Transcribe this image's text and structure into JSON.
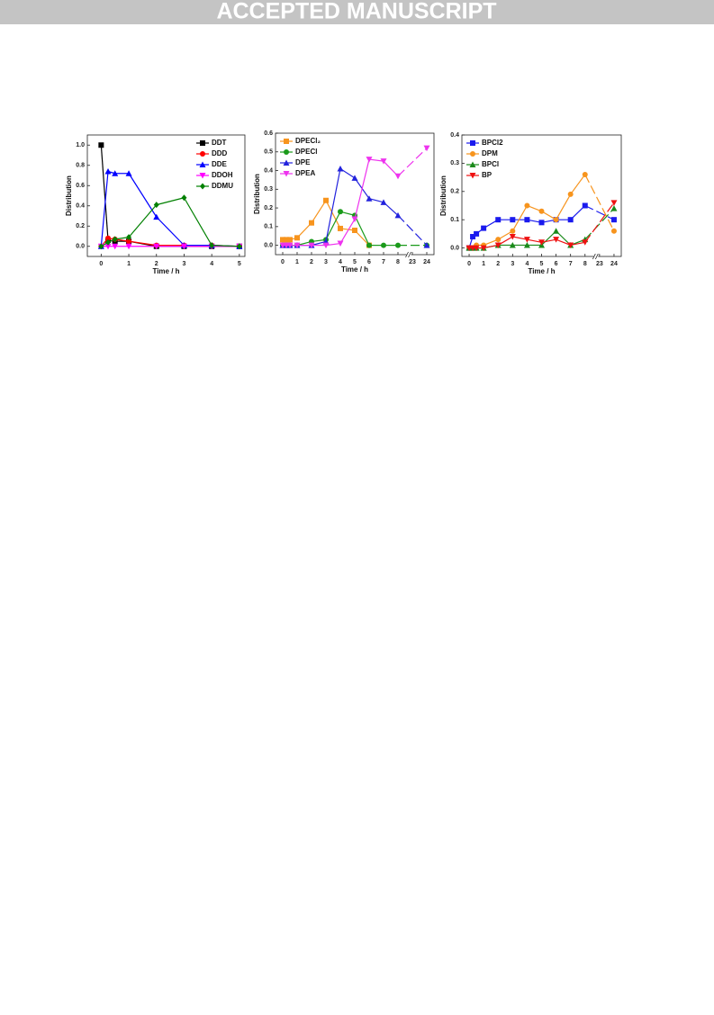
{
  "header": {
    "title": "ACCEPTED MANUSCRIPT"
  },
  "chart_data": [
    {
      "type": "line",
      "xlabel": "Time / h",
      "ylabel": "Distribution",
      "legend": "upper right",
      "x": [
        0,
        0.25,
        0.5,
        1,
        2,
        3,
        4,
        5
      ],
      "xlim": [
        -0.5,
        5.2
      ],
      "xticks": [
        0,
        1,
        2,
        3,
        4,
        5
      ],
      "ylim": [
        -0.1,
        1.1
      ],
      "yticks": [
        {
          "value": 0,
          "label": "0.0"
        },
        0.2,
        0.4,
        0.6,
        0.8,
        {
          "value": 1,
          "label": "1.0"
        }
      ],
      "series": [
        {
          "name": "DDT",
          "color": "#000000",
          "marker": "square",
          "values": [
            1.0,
            0.06,
            0.05,
            0.05,
            0,
            0,
            0,
            0
          ]
        },
        {
          "name": "DDD",
          "color": "#ff0000",
          "marker": "circle",
          "values": [
            0,
            0.08,
            0.07,
            0.05,
            0.01,
            0.01,
            0.01,
            0
          ]
        },
        {
          "name": "DDE",
          "color": "#0000ff",
          "marker": "triangle-up",
          "values": [
            0,
            0.74,
            0.72,
            0.72,
            0.29,
            0.01,
            0.01,
            0
          ]
        },
        {
          "name": "DDOH",
          "color": "#ff00ff",
          "marker": "triangle-down",
          "values": [
            0,
            0,
            0,
            0,
            0,
            0,
            0,
            0
          ]
        },
        {
          "name": "DDMU",
          "color": "#008000",
          "marker": "diamond",
          "values": [
            0,
            0.04,
            0.07,
            0.09,
            0.41,
            0.48,
            0.01,
            0
          ]
        }
      ]
    },
    {
      "type": "line",
      "xlabel": "Time / h",
      "ylabel": "Distribution",
      "legend": "upper left",
      "axis_break": true,
      "x": [
        0,
        0.25,
        0.5,
        1,
        2,
        3,
        4,
        5,
        6,
        7,
        8,
        24
      ],
      "xlim": [
        -0.5,
        24.5
      ],
      "xticks": [
        0,
        1,
        2,
        3,
        4,
        5,
        6,
        7,
        8,
        23,
        24
      ],
      "ylim": [
        -0.05,
        0.6
      ],
      "yticks": [
        {
          "value": 0,
          "label": "0.0"
        },
        0.1,
        0.2,
        0.3,
        0.4,
        0.5,
        0.6
      ],
      "series": [
        {
          "name": "DPECl₂",
          "color": "#f7941d",
          "marker": "square",
          "values": [
            0.03,
            0.03,
            0.03,
            0.04,
            0.12,
            0.24,
            0.09,
            0.08,
            0,
            null,
            null,
            null
          ]
        },
        {
          "name": "DPECl",
          "color": "#1a9a1a",
          "marker": "circle",
          "values": [
            0,
            0,
            0,
            0,
            0.02,
            0.03,
            0.18,
            0.16,
            0,
            0,
            0,
            0
          ]
        },
        {
          "name": "DPE",
          "color": "#2222dd",
          "marker": "triangle-up",
          "values": [
            0,
            0,
            0,
            0,
            0,
            0.02,
            0.41,
            0.36,
            0.25,
            0.23,
            0.16,
            0
          ]
        },
        {
          "name": "DPEA",
          "color": "#ee33ee",
          "marker": "triangle-down",
          "values": [
            0,
            0,
            0,
            0,
            0,
            0,
            0.01,
            0.14,
            0.46,
            0.45,
            0.37,
            0.52
          ]
        }
      ]
    },
    {
      "type": "line",
      "xlabel": "Time / h",
      "ylabel": "Distribution",
      "legend": "upper left",
      "axis_break": true,
      "x": [
        0,
        0.25,
        0.5,
        1,
        2,
        3,
        4,
        5,
        6,
        7,
        8,
        24
      ],
      "xlim": [
        -0.5,
        24.5
      ],
      "xticks": [
        0,
        1,
        2,
        3,
        4,
        5,
        6,
        7,
        8,
        23,
        24
      ],
      "ylim": [
        -0.03,
        0.4
      ],
      "yticks": [
        {
          "value": 0,
          "label": "0.0"
        },
        0.1,
        0.2,
        0.3,
        0.4
      ],
      "series": [
        {
          "name": "BPCl2",
          "color": "#1a1aee",
          "marker": "square",
          "values": [
            0,
            0.04,
            0.05,
            0.07,
            0.1,
            0.1,
            0.1,
            0.09,
            0.1,
            0.1,
            0.15,
            0.1
          ]
        },
        {
          "name": "DPM",
          "color": "#f7941d",
          "marker": "circle",
          "values": [
            0,
            0,
            0.01,
            0.01,
            0.03,
            0.06,
            0.15,
            0.13,
            0.1,
            0.19,
            0.26,
            0.06
          ]
        },
        {
          "name": "BPCl",
          "color": "#1a8a1a",
          "marker": "triangle-up",
          "values": [
            0,
            0,
            0,
            0,
            0.01,
            0.01,
            0.01,
            0.01,
            0.06,
            0.01,
            0.03,
            0.14
          ]
        },
        {
          "name": "BP",
          "color": "#ee1111",
          "marker": "triangle-down",
          "values": [
            0,
            0,
            0,
            0,
            0.01,
            0.04,
            0.03,
            0.02,
            0.03,
            0.01,
            0.02,
            0.16
          ]
        }
      ]
    }
  ]
}
